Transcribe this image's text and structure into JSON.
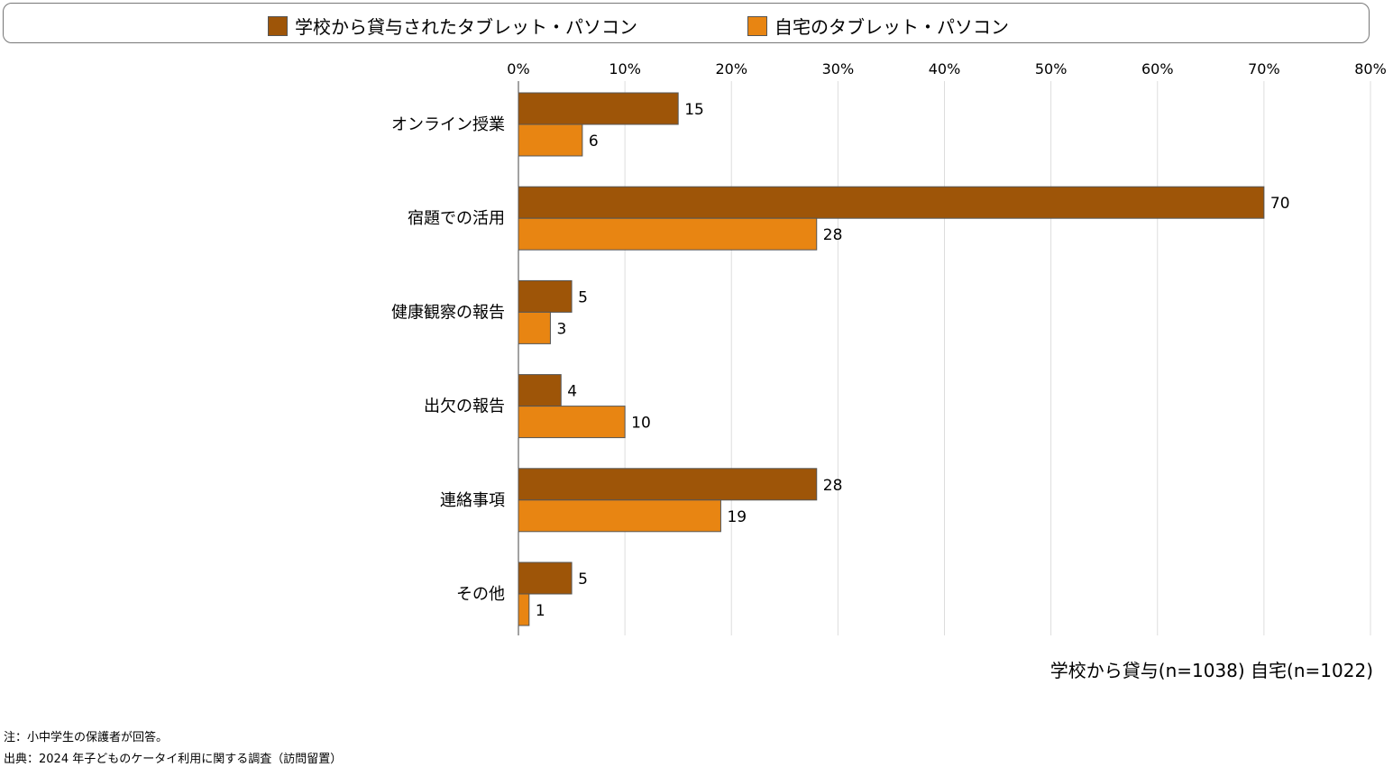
{
  "legend": [
    {
      "label": "学校から貸与されたタブレット・パソコン",
      "color": "#9e5508"
    },
    {
      "label": "自宅のタブレット・パソコン",
      "color": "#e88512"
    }
  ],
  "chart_data": {
    "type": "bar",
    "orientation": "horizontal",
    "categories": [
      "オンライン授業",
      "宿題での活用",
      "健康観察の報告",
      "出欠の報告",
      "連絡事項",
      "その他"
    ],
    "series": [
      {
        "name": "学校から貸与されたタブレット・パソコン",
        "values": [
          15,
          70,
          5,
          4,
          28,
          5
        ]
      },
      {
        "name": "自宅のタブレット・パソコン",
        "values": [
          6,
          28,
          3,
          10,
          19,
          1
        ]
      }
    ],
    "xlim": [
      0,
      80
    ],
    "xticks": [
      "0%",
      "10%",
      "20%",
      "30%",
      "40%",
      "50%",
      "60%",
      "70%",
      "80%"
    ],
    "grid": true,
    "legend_position": "top"
  },
  "sample_note": "学校から貸与(n=1038) 自宅(n=1022)",
  "notes": [
    "注：小中学生の保護者が回答。",
    "出典：2024 年子どものケータイ利用に関する調査（訪問留置）"
  ]
}
